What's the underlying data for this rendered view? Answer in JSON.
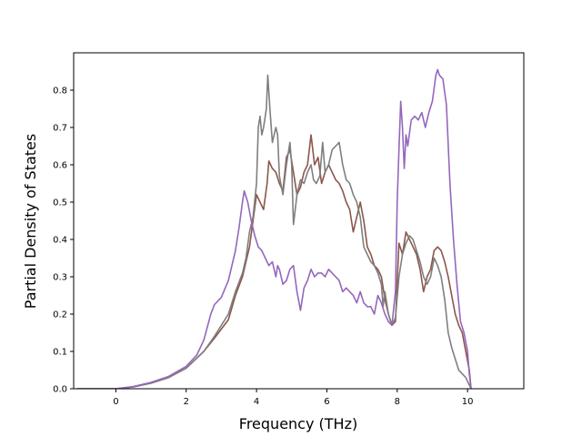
{
  "chart_data": {
    "type": "line",
    "title": "",
    "xlabel": "Frequency (THz)",
    "ylabel": "Partial Density of States",
    "xlim": [
      -1.2,
      11.6
    ],
    "ylim": [
      0.0,
      0.9
    ],
    "xticks": [
      0,
      2,
      4,
      6,
      8,
      10
    ],
    "yticks": [
      0.0,
      0.1,
      0.2,
      0.3,
      0.4,
      0.5,
      0.6,
      0.7,
      0.8
    ],
    "xtick_labels": [
      "0",
      "2",
      "4",
      "6",
      "8",
      "10"
    ],
    "ytick_labels": [
      "0.0",
      "0.1",
      "0.2",
      "0.3",
      "0.4",
      "0.5",
      "0.6",
      "0.7",
      "0.8"
    ],
    "grid": false,
    "legend": "none",
    "series": [
      {
        "color": "#8c564b",
        "points": [
          [
            -1.1,
            0
          ],
          [
            0,
            0
          ],
          [
            0.5,
            0.005
          ],
          [
            1,
            0.015
          ],
          [
            1.5,
            0.03
          ],
          [
            2,
            0.055
          ],
          [
            2.5,
            0.1
          ],
          [
            2.8,
            0.135
          ],
          [
            3.0,
            0.16
          ],
          [
            3.2,
            0.185
          ],
          [
            3.4,
            0.25
          ],
          [
            3.6,
            0.3
          ],
          [
            3.8,
            0.38
          ],
          [
            3.9,
            0.45
          ],
          [
            4.0,
            0.52
          ],
          [
            4.1,
            0.5
          ],
          [
            4.2,
            0.48
          ],
          [
            4.3,
            0.55
          ],
          [
            4.35,
            0.61
          ],
          [
            4.45,
            0.59
          ],
          [
            4.55,
            0.58
          ],
          [
            4.65,
            0.55
          ],
          [
            4.75,
            0.53
          ],
          [
            4.85,
            0.62
          ],
          [
            4.95,
            0.64
          ],
          [
            5.05,
            0.58
          ],
          [
            5.15,
            0.52
          ],
          [
            5.25,
            0.54
          ],
          [
            5.35,
            0.58
          ],
          [
            5.45,
            0.6
          ],
          [
            5.55,
            0.68
          ],
          [
            5.65,
            0.6
          ],
          [
            5.75,
            0.62
          ],
          [
            5.85,
            0.55
          ],
          [
            5.95,
            0.58
          ],
          [
            6.05,
            0.6
          ],
          [
            6.15,
            0.58
          ],
          [
            6.25,
            0.56
          ],
          [
            6.35,
            0.55
          ],
          [
            6.45,
            0.53
          ],
          [
            6.55,
            0.5
          ],
          [
            6.65,
            0.48
          ],
          [
            6.75,
            0.42
          ],
          [
            6.85,
            0.46
          ],
          [
            6.95,
            0.5
          ],
          [
            7.05,
            0.45
          ],
          [
            7.15,
            0.38
          ],
          [
            7.25,
            0.36
          ],
          [
            7.35,
            0.33
          ],
          [
            7.45,
            0.32
          ],
          [
            7.55,
            0.3
          ],
          [
            7.65,
            0.24
          ],
          [
            7.75,
            0.2
          ],
          [
            7.85,
            0.17
          ],
          [
            7.95,
            0.18
          ],
          [
            8.05,
            0.39
          ],
          [
            8.15,
            0.36
          ],
          [
            8.25,
            0.42
          ],
          [
            8.35,
            0.4
          ],
          [
            8.45,
            0.38
          ],
          [
            8.55,
            0.36
          ],
          [
            8.65,
            0.32
          ],
          [
            8.75,
            0.26
          ],
          [
            8.85,
            0.3
          ],
          [
            8.95,
            0.32
          ],
          [
            9.05,
            0.37
          ],
          [
            9.15,
            0.38
          ],
          [
            9.25,
            0.37
          ],
          [
            9.35,
            0.34
          ],
          [
            9.45,
            0.3
          ],
          [
            9.55,
            0.25
          ],
          [
            9.65,
            0.2
          ],
          [
            9.75,
            0.17
          ],
          [
            9.85,
            0.15
          ],
          [
            9.95,
            0.1
          ],
          [
            10.05,
            0.05
          ],
          [
            10.1,
            0
          ]
        ]
      },
      {
        "color": "#7f7f7f",
        "points": [
          [
            -1.1,
            0
          ],
          [
            0,
            0
          ],
          [
            0.5,
            0.005
          ],
          [
            1,
            0.015
          ],
          [
            1.5,
            0.03
          ],
          [
            2,
            0.055
          ],
          [
            2.5,
            0.1
          ],
          [
            2.8,
            0.14
          ],
          [
            3.0,
            0.17
          ],
          [
            3.2,
            0.2
          ],
          [
            3.4,
            0.26
          ],
          [
            3.6,
            0.31
          ],
          [
            3.7,
            0.35
          ],
          [
            3.8,
            0.42
          ],
          [
            3.9,
            0.46
          ],
          [
            4.0,
            0.55
          ],
          [
            4.05,
            0.7
          ],
          [
            4.1,
            0.73
          ],
          [
            4.15,
            0.68
          ],
          [
            4.2,
            0.7
          ],
          [
            4.28,
            0.75
          ],
          [
            4.32,
            0.84
          ],
          [
            4.38,
            0.75
          ],
          [
            4.45,
            0.66
          ],
          [
            4.55,
            0.7
          ],
          [
            4.6,
            0.68
          ],
          [
            4.65,
            0.57
          ],
          [
            4.75,
            0.52
          ],
          [
            4.85,
            0.6
          ],
          [
            4.95,
            0.66
          ],
          [
            5.0,
            0.6
          ],
          [
            5.05,
            0.44
          ],
          [
            5.15,
            0.52
          ],
          [
            5.25,
            0.56
          ],
          [
            5.35,
            0.55
          ],
          [
            5.45,
            0.58
          ],
          [
            5.55,
            0.6
          ],
          [
            5.62,
            0.56
          ],
          [
            5.7,
            0.55
          ],
          [
            5.8,
            0.57
          ],
          [
            5.88,
            0.66
          ],
          [
            5.95,
            0.58
          ],
          [
            6.05,
            0.6
          ],
          [
            6.15,
            0.64
          ],
          [
            6.25,
            0.65
          ],
          [
            6.35,
            0.66
          ],
          [
            6.45,
            0.6
          ],
          [
            6.55,
            0.56
          ],
          [
            6.65,
            0.55
          ],
          [
            6.75,
            0.52
          ],
          [
            6.85,
            0.5
          ],
          [
            6.95,
            0.46
          ],
          [
            7.05,
            0.38
          ],
          [
            7.15,
            0.36
          ],
          [
            7.25,
            0.34
          ],
          [
            7.35,
            0.33
          ],
          [
            7.45,
            0.31
          ],
          [
            7.55,
            0.28
          ],
          [
            7.6,
            0.22
          ],
          [
            7.65,
            0.26
          ],
          [
            7.75,
            0.2
          ],
          [
            7.85,
            0.17
          ],
          [
            7.95,
            0.19
          ],
          [
            8.05,
            0.3
          ],
          [
            8.15,
            0.36
          ],
          [
            8.25,
            0.39
          ],
          [
            8.35,
            0.41
          ],
          [
            8.45,
            0.4
          ],
          [
            8.55,
            0.37
          ],
          [
            8.65,
            0.34
          ],
          [
            8.75,
            0.3
          ],
          [
            8.85,
            0.28
          ],
          [
            8.95,
            0.3
          ],
          [
            9.05,
            0.35
          ],
          [
            9.15,
            0.33
          ],
          [
            9.25,
            0.3
          ],
          [
            9.35,
            0.24
          ],
          [
            9.45,
            0.15
          ],
          [
            9.55,
            0.11
          ],
          [
            9.65,
            0.08
          ],
          [
            9.75,
            0.05
          ],
          [
            9.85,
            0.04
          ],
          [
            9.95,
            0.03
          ],
          [
            10.05,
            0.01
          ],
          [
            10.1,
            0
          ]
        ]
      },
      {
        "color": "#9467bd",
        "points": [
          [
            -1.1,
            0
          ],
          [
            0,
            0
          ],
          [
            0.5,
            0.006
          ],
          [
            1,
            0.017
          ],
          [
            1.5,
            0.033
          ],
          [
            2,
            0.06
          ],
          [
            2.3,
            0.09
          ],
          [
            2.5,
            0.13
          ],
          [
            2.7,
            0.2
          ],
          [
            2.8,
            0.225
          ],
          [
            3.0,
            0.245
          ],
          [
            3.2,
            0.29
          ],
          [
            3.3,
            0.33
          ],
          [
            3.4,
            0.37
          ],
          [
            3.5,
            0.43
          ],
          [
            3.6,
            0.5
          ],
          [
            3.65,
            0.53
          ],
          [
            3.75,
            0.5
          ],
          [
            3.85,
            0.45
          ],
          [
            3.95,
            0.41
          ],
          [
            4.05,
            0.38
          ],
          [
            4.15,
            0.37
          ],
          [
            4.25,
            0.35
          ],
          [
            4.35,
            0.33
          ],
          [
            4.45,
            0.34
          ],
          [
            4.55,
            0.3
          ],
          [
            4.6,
            0.33
          ],
          [
            4.65,
            0.32
          ],
          [
            4.75,
            0.28
          ],
          [
            4.85,
            0.29
          ],
          [
            4.95,
            0.32
          ],
          [
            5.05,
            0.33
          ],
          [
            5.15,
            0.26
          ],
          [
            5.25,
            0.21
          ],
          [
            5.35,
            0.27
          ],
          [
            5.45,
            0.29
          ],
          [
            5.55,
            0.32
          ],
          [
            5.65,
            0.3
          ],
          [
            5.75,
            0.31
          ],
          [
            5.85,
            0.31
          ],
          [
            5.95,
            0.3
          ],
          [
            6.05,
            0.32
          ],
          [
            6.15,
            0.31
          ],
          [
            6.25,
            0.3
          ],
          [
            6.35,
            0.29
          ],
          [
            6.45,
            0.26
          ],
          [
            6.55,
            0.27
          ],
          [
            6.65,
            0.26
          ],
          [
            6.75,
            0.25
          ],
          [
            6.85,
            0.23
          ],
          [
            6.95,
            0.26
          ],
          [
            7.05,
            0.23
          ],
          [
            7.15,
            0.22
          ],
          [
            7.25,
            0.22
          ],
          [
            7.35,
            0.2
          ],
          [
            7.45,
            0.25
          ],
          [
            7.55,
            0.23
          ],
          [
            7.65,
            0.2
          ],
          [
            7.75,
            0.18
          ],
          [
            7.85,
            0.17
          ],
          [
            7.95,
            0.26
          ],
          [
            8.0,
            0.5
          ],
          [
            8.05,
            0.64
          ],
          [
            8.1,
            0.77
          ],
          [
            8.15,
            0.7
          ],
          [
            8.2,
            0.59
          ],
          [
            8.25,
            0.68
          ],
          [
            8.3,
            0.65
          ],
          [
            8.4,
            0.72
          ],
          [
            8.5,
            0.73
          ],
          [
            8.6,
            0.72
          ],
          [
            8.7,
            0.74
          ],
          [
            8.8,
            0.7
          ],
          [
            8.9,
            0.74
          ],
          [
            9.0,
            0.77
          ],
          [
            9.1,
            0.84
          ],
          [
            9.15,
            0.855
          ],
          [
            9.2,
            0.84
          ],
          [
            9.3,
            0.83
          ],
          [
            9.4,
            0.76
          ],
          [
            9.5,
            0.55
          ],
          [
            9.6,
            0.4
          ],
          [
            9.7,
            0.28
          ],
          [
            9.8,
            0.18
          ],
          [
            9.9,
            0.15
          ],
          [
            10.0,
            0.1
          ],
          [
            10.05,
            0.04
          ],
          [
            10.1,
            0
          ]
        ]
      }
    ]
  }
}
